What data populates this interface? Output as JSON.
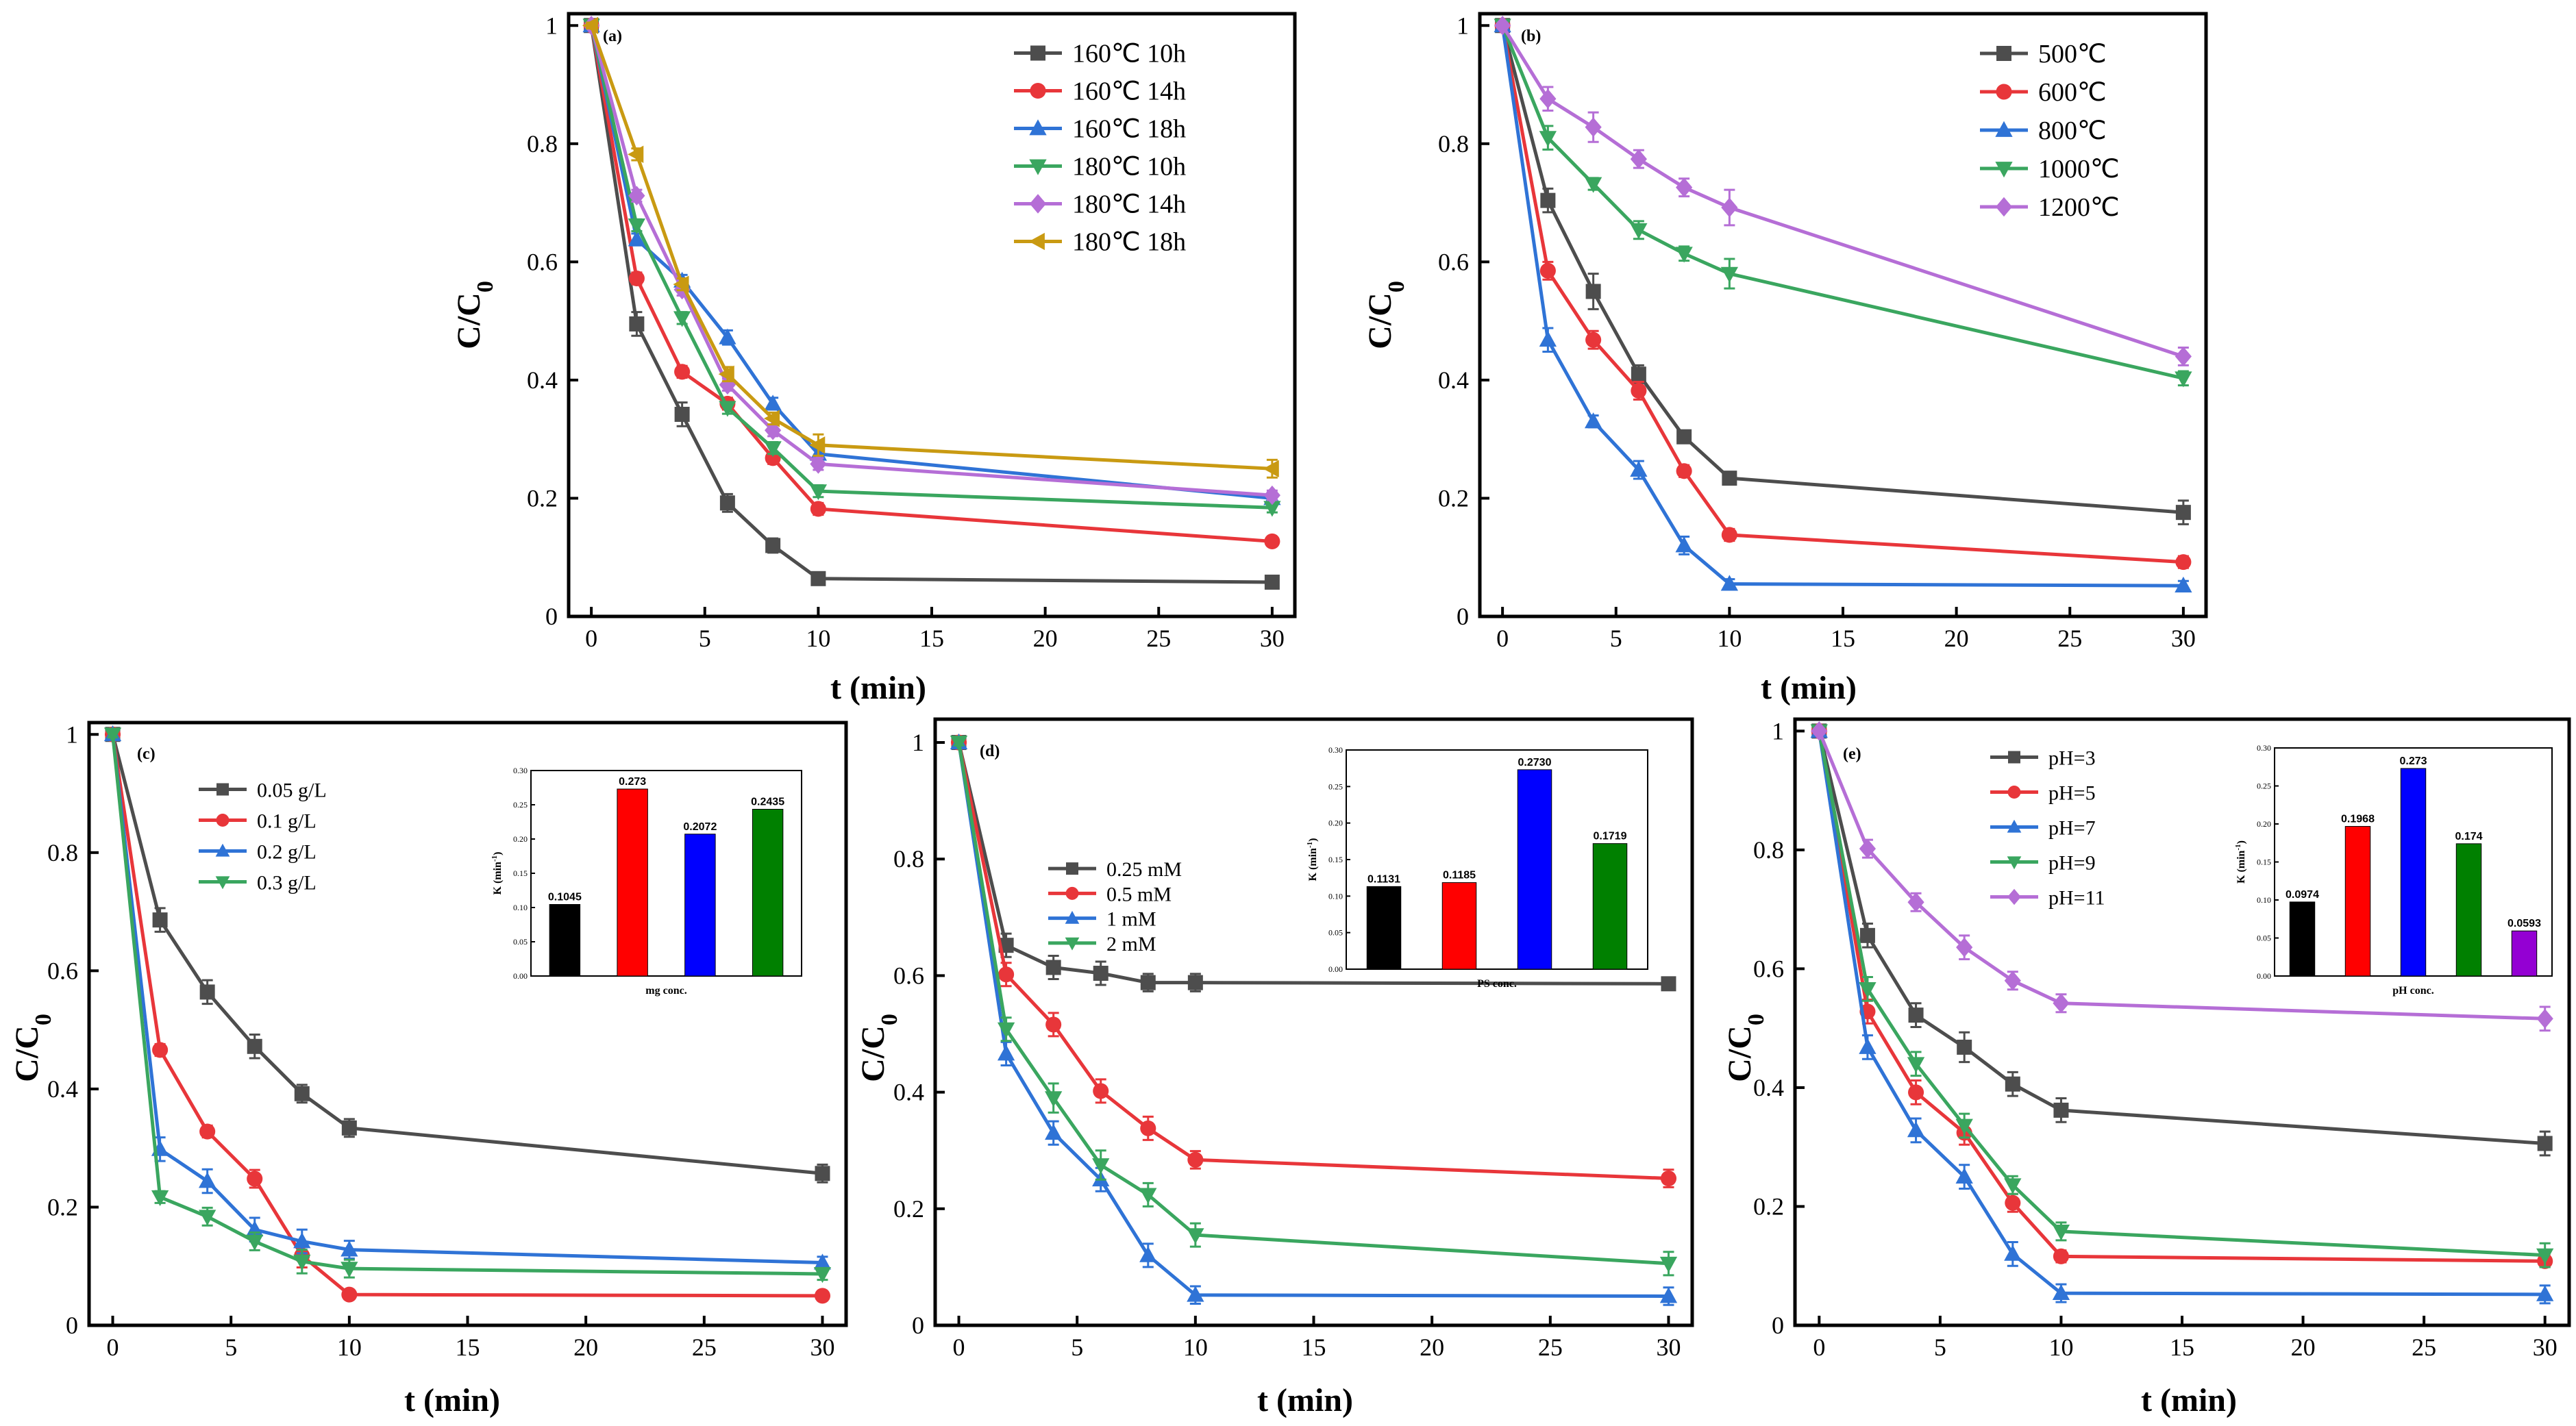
{
  "chart_data": [
    {
      "type": "line",
      "panel": "(a)",
      "xlabel": "t (min)",
      "ylabel": "C/C0",
      "xlim": [
        -1,
        31
      ],
      "ylim": [
        0,
        1.02
      ],
      "xticks": [
        0,
        5,
        10,
        15,
        20,
        25,
        30
      ],
      "yticks": [
        0.0,
        0.2,
        0.4,
        0.6,
        0.8,
        1.0
      ],
      "x": [
        0,
        2,
        4,
        6,
        8,
        10,
        30
      ],
      "legend_position": "top-right",
      "series": [
        {
          "name": "160℃  10h",
          "color": "#4d4d4d",
          "marker": "square",
          "values": [
            1.0,
            0.495,
            0.342,
            0.192,
            0.12,
            0.064,
            0.058
          ],
          "errors": [
            0.005,
            0.02,
            0.02,
            0.015,
            0.012,
            0.01,
            0.005
          ]
        },
        {
          "name": "160℃  14h",
          "color": "#e8363a",
          "marker": "circle",
          "values": [
            1.0,
            0.572,
            0.414,
            0.36,
            0.268,
            0.182,
            0.127
          ],
          "errors": [
            0.005,
            0.01,
            0.01,
            0.01,
            0.01,
            0.01,
            0.005
          ]
        },
        {
          "name": "160℃  18h",
          "color": "#2f73d6",
          "marker": "triangle-up",
          "values": [
            1.0,
            0.638,
            0.568,
            0.472,
            0.36,
            0.275,
            0.2
          ],
          "errors": [
            0.005,
            0.01,
            0.01,
            0.012,
            0.01,
            0.01,
            0.008
          ]
        },
        {
          "name": "180℃  10h",
          "color": "#3aa65f",
          "marker": "triangle-down",
          "values": [
            1.0,
            0.662,
            0.505,
            0.353,
            0.285,
            0.212,
            0.184
          ],
          "errors": [
            0.005,
            0.01,
            0.01,
            0.01,
            0.01,
            0.01,
            0.008
          ]
        },
        {
          "name": "180℃  14h",
          "color": "#b56ed6",
          "marker": "diamond",
          "values": [
            1.0,
            0.712,
            0.553,
            0.392,
            0.315,
            0.258,
            0.205
          ],
          "errors": [
            0.005,
            0.01,
            0.01,
            0.01,
            0.01,
            0.01,
            0.008
          ]
        },
        {
          "name": "180℃  18h",
          "color": "#c99a12",
          "marker": "triangle-left",
          "values": [
            1.0,
            0.782,
            0.562,
            0.41,
            0.335,
            0.29,
            0.25
          ],
          "errors": [
            0.005,
            0.01,
            0.01,
            0.012,
            0.01,
            0.018,
            0.015
          ]
        }
      ]
    },
    {
      "type": "line",
      "panel": "(b)",
      "xlabel": "t (min)",
      "ylabel": "C/C0",
      "xlim": [
        -1,
        31
      ],
      "ylim": [
        0,
        1.02
      ],
      "xticks": [
        0,
        5,
        10,
        15,
        20,
        25,
        30
      ],
      "yticks": [
        0.0,
        0.2,
        0.4,
        0.6,
        0.8,
        1.0
      ],
      "x": [
        0,
        2,
        4,
        6,
        8,
        10,
        30
      ],
      "legend_position": "top-right",
      "series": [
        {
          "name": "500℃",
          "color": "#4d4d4d",
          "marker": "square",
          "values": [
            1.0,
            0.704,
            0.55,
            0.41,
            0.304,
            0.234,
            0.176
          ],
          "errors": [
            0.005,
            0.02,
            0.03,
            0.015,
            0.01,
            0.01,
            0.02
          ]
        },
        {
          "name": "600℃",
          "color": "#e8363a",
          "marker": "circle",
          "values": [
            1.0,
            0.585,
            0.468,
            0.382,
            0.246,
            0.138,
            0.092
          ],
          "errors": [
            0.005,
            0.015,
            0.015,
            0.015,
            0.01,
            0.01,
            0.01
          ]
        },
        {
          "name": "800℃",
          "color": "#2f73d6",
          "marker": "triangle-up",
          "values": [
            1.0,
            0.468,
            0.33,
            0.248,
            0.12,
            0.055,
            0.052
          ],
          "errors": [
            0.005,
            0.02,
            0.01,
            0.015,
            0.015,
            0.008,
            0.008
          ]
        },
        {
          "name": "1000℃",
          "color": "#3aa65f",
          "marker": "triangle-down",
          "values": [
            1.0,
            0.81,
            0.732,
            0.654,
            0.614,
            0.58,
            0.403
          ],
          "errors": [
            0.005,
            0.02,
            0.01,
            0.015,
            0.012,
            0.025,
            0.012
          ]
        },
        {
          "name": "1200℃",
          "color": "#b56ed6",
          "marker": "diamond",
          "values": [
            1.0,
            0.876,
            0.828,
            0.774,
            0.726,
            0.692,
            0.44
          ],
          "errors": [
            0.005,
            0.02,
            0.025,
            0.015,
            0.015,
            0.03,
            0.015
          ]
        }
      ]
    },
    {
      "type": "line",
      "panel": "(c)",
      "xlabel": "t (min)",
      "ylabel": "C/C0",
      "xlim": [
        -1,
        31
      ],
      "ylim": [
        0,
        1.02
      ],
      "xticks": [
        0,
        5,
        10,
        15,
        20,
        25,
        30
      ],
      "yticks": [
        0.0,
        0.2,
        0.4,
        0.6,
        0.8,
        1.0
      ],
      "x": [
        0,
        2,
        4,
        6,
        8,
        10,
        30
      ],
      "legend_position": "top-left",
      "series": [
        {
          "name": "0.05  g/L",
          "color": "#4d4d4d",
          "marker": "square",
          "values": [
            1.0,
            0.686,
            0.564,
            0.472,
            0.392,
            0.334,
            0.257
          ],
          "errors": [
            0.005,
            0.02,
            0.02,
            0.02,
            0.015,
            0.015,
            0.015
          ]
        },
        {
          "name": "0.1  g/L",
          "color": "#e8363a",
          "marker": "circle",
          "values": [
            1.0,
            0.466,
            0.328,
            0.248,
            0.118,
            0.052,
            0.05
          ],
          "errors": [
            0.005,
            0.01,
            0.01,
            0.015,
            0.02,
            0.008,
            0.008
          ]
        },
        {
          "name": "0.2  g/L",
          "color": "#2f73d6",
          "marker": "triangle-up",
          "values": [
            1.0,
            0.298,
            0.244,
            0.162,
            0.142,
            0.128,
            0.106
          ],
          "errors": [
            0.005,
            0.02,
            0.02,
            0.02,
            0.02,
            0.015,
            0.01
          ]
        },
        {
          "name": "0.3  g/L",
          "color": "#3aa65f",
          "marker": "triangle-down",
          "values": [
            1.0,
            0.217,
            0.184,
            0.142,
            0.108,
            0.096,
            0.087
          ],
          "errors": [
            0.005,
            0.01,
            0.015,
            0.015,
            0.02,
            0.015,
            0.01
          ]
        }
      ],
      "inset": {
        "type": "bar",
        "xlabel": "mg conc.",
        "ylabel": "K (min-1)",
        "ylim": [
          0,
          0.3
        ],
        "yticks": [
          "0.00",
          "0.05",
          "0.10",
          "0.15",
          "0.20",
          "0.25",
          "0.30"
        ],
        "values": [
          0.1045,
          0.273,
          0.2072,
          0.2435
        ],
        "labels": [
          "0.1045",
          "0.273",
          "0.2072",
          "0.2435"
        ],
        "colors": [
          "#000000",
          "#ff0000",
          "#0000ff",
          "#008000"
        ]
      }
    },
    {
      "type": "line",
      "panel": "(d)",
      "xlabel": "t (min)",
      "ylabel": "C/C0",
      "xlim": [
        -1,
        31
      ],
      "ylim": [
        0,
        1.04
      ],
      "xticks": [
        0,
        5,
        10,
        15,
        20,
        25,
        30
      ],
      "yticks": [
        0.0,
        0.2,
        0.4,
        0.6,
        0.8,
        1.0
      ],
      "x": [
        0,
        2,
        4,
        6,
        8,
        10,
        30
      ],
      "legend_position": "center-left",
      "series": [
        {
          "name": "0.25 mM",
          "color": "#4d4d4d",
          "marker": "square",
          "values": [
            1.0,
            0.652,
            0.614,
            0.604,
            0.588,
            0.588,
            0.586
          ],
          "errors": [
            0.005,
            0.02,
            0.02,
            0.02,
            0.015,
            0.015,
            0.01
          ]
        },
        {
          "name": "0.5  mM",
          "color": "#e8363a",
          "marker": "circle",
          "values": [
            1.0,
            0.602,
            0.516,
            0.402,
            0.338,
            0.284,
            0.252
          ],
          "errors": [
            0.005,
            0.02,
            0.02,
            0.02,
            0.02,
            0.015,
            0.015
          ]
        },
        {
          "name": "1    mM",
          "color": "#2f73d6",
          "marker": "triangle-up",
          "values": [
            1.0,
            0.466,
            0.33,
            0.25,
            0.12,
            0.052,
            0.05
          ],
          "errors": [
            0.005,
            0.02,
            0.02,
            0.02,
            0.02,
            0.015,
            0.015
          ]
        },
        {
          "name": "2    mM",
          "color": "#3aa65f",
          "marker": "triangle-down",
          "values": [
            1.0,
            0.508,
            0.39,
            0.275,
            0.224,
            0.155,
            0.106
          ],
          "errors": [
            0.005,
            0.02,
            0.025,
            0.025,
            0.02,
            0.02,
            0.02
          ]
        }
      ],
      "inset": {
        "type": "bar",
        "xlabel": "PS conc.",
        "ylabel": "K (min-1)",
        "ylim": [
          0,
          0.3
        ],
        "yticks": [
          "0.00",
          "0.05",
          "0.10",
          "0.15",
          "0.20",
          "0.25",
          "0.30"
        ],
        "values": [
          0.1131,
          0.1185,
          0.273,
          0.1719
        ],
        "labels": [
          "0.1131",
          "0.1185",
          "0.2730",
          "0.1719"
        ],
        "colors": [
          "#000000",
          "#ff0000",
          "#0000ff",
          "#008000"
        ]
      }
    },
    {
      "type": "line",
      "panel": "(e)",
      "xlabel": "t (min)",
      "ylabel": "C/C0",
      "xlim": [
        -1,
        31
      ],
      "ylim": [
        0,
        1.02
      ],
      "xticks": [
        0,
        5,
        10,
        15,
        20,
        25,
        30
      ],
      "yticks": [
        0.0,
        0.2,
        0.4,
        0.6,
        0.8,
        1.0
      ],
      "x": [
        0,
        2,
        4,
        6,
        8,
        10,
        30
      ],
      "legend_position": "top-left",
      "series": [
        {
          "name": "pH=3",
          "color": "#4d4d4d",
          "marker": "square",
          "values": [
            1.0,
            0.656,
            0.522,
            0.468,
            0.406,
            0.362,
            0.306
          ],
          "errors": [
            0.005,
            0.02,
            0.02,
            0.025,
            0.02,
            0.02,
            0.02
          ]
        },
        {
          "name": "pH=5",
          "color": "#e8363a",
          "marker": "circle",
          "values": [
            1.0,
            0.528,
            0.392,
            0.324,
            0.206,
            0.116,
            0.108
          ],
          "errors": [
            0.005,
            0.02,
            0.02,
            0.02,
            0.015,
            0.01,
            0.01
          ]
        },
        {
          "name": "pH=7",
          "color": "#2f73d6",
          "marker": "triangle-up",
          "values": [
            1.0,
            0.468,
            0.328,
            0.25,
            0.12,
            0.054,
            0.052
          ],
          "errors": [
            0.005,
            0.02,
            0.02,
            0.02,
            0.02,
            0.015,
            0.015
          ]
        },
        {
          "name": "pH=9",
          "color": "#3aa65f",
          "marker": "triangle-down",
          "values": [
            1.0,
            0.566,
            0.44,
            0.336,
            0.236,
            0.158,
            0.118
          ],
          "errors": [
            0.005,
            0.02,
            0.02,
            0.02,
            0.015,
            0.015,
            0.02
          ]
        },
        {
          "name": "pH=11",
          "color": "#b56ed6",
          "marker": "diamond",
          "values": [
            1.0,
            0.802,
            0.712,
            0.636,
            0.58,
            0.542,
            0.516
          ],
          "errors": [
            0.005,
            0.015,
            0.015,
            0.02,
            0.015,
            0.015,
            0.02
          ]
        }
      ],
      "inset": {
        "type": "bar",
        "xlabel": "pH conc.",
        "ylabel": "K (min-1)",
        "ylim": [
          0,
          0.3
        ],
        "yticks": [
          "0.00",
          "0.05",
          "0.10",
          "0.15",
          "0.20",
          "0.25",
          "0.30"
        ],
        "values": [
          0.0974,
          0.1968,
          0.273,
          0.174,
          0.0593
        ],
        "labels": [
          "0.0974",
          "0.1968",
          "0.273",
          "0.174",
          "0.0593"
        ],
        "colors": [
          "#000000",
          "#ff0000",
          "#0000ff",
          "#008000",
          "#9400d3"
        ]
      }
    }
  ]
}
